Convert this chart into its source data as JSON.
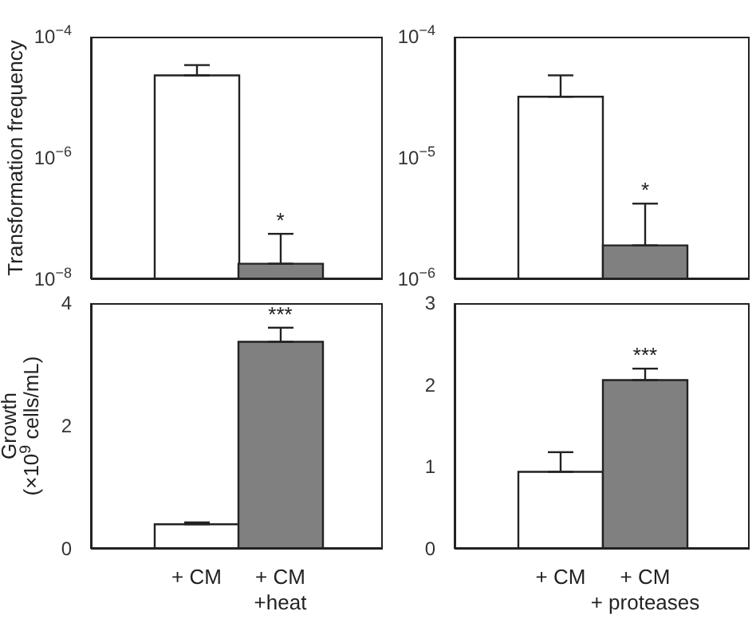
{
  "chart_data": [
    {
      "type": "bar",
      "ylabel": "Transformation frequency",
      "categories": [
        null,
        null
      ],
      "values": [
        2.3e-05,
        1.8e-08
      ],
      "colors": [
        "#ffffff",
        "#808080"
      ],
      "errors": [
        [
          2.3e-05,
          3.4e-05
        ],
        [
          1.8e-08,
          5.6e-08
        ]
      ],
      "log": "y",
      "ylim": [
        1e-08,
        0.0001
      ],
      "yticks": [
        {
          "value": 1e-08,
          "label": "10$^{−8}$"
        },
        {
          "value": 1e-06,
          "label": "10$^{−6}$"
        },
        {
          "value": 0.0001,
          "label": "10$^{−4}$"
        }
      ],
      "tick_labels": "y",
      "annotations": [
        "*"
      ]
    },
    {
      "type": "bar",
      "categories": [
        null,
        null
      ],
      "values": [
        3.2e-05,
        1.9e-06
      ],
      "colors": [
        "#ffffff",
        "#808080"
      ],
      "errors": [
        [
          3.2e-05,
          4.8e-05
        ],
        [
          1.9e-06,
          4.2e-06
        ]
      ],
      "log": "y",
      "ylim": [
        1e-06,
        0.0001
      ],
      "yticks": [
        {
          "value": 1e-06,
          "label": "10$^{−6}$"
        },
        {
          "value": 1e-05,
          "label": "10$^{−5}$"
        },
        {
          "value": 0.0001,
          "label": "10$^{−4}$"
        }
      ],
      "tick_labels": "y",
      "annotations": [
        "*"
      ]
    },
    {
      "type": "bar",
      "ylabel": "Growth\n(×10$^{9}$ cells/mL)",
      "categories": [
        "+ CM",
        "+ CM\n+heat"
      ],
      "values": [
        0.4,
        3.37
      ],
      "colors": [
        "#ffffff",
        "#808080"
      ],
      "errors": [
        [
          0.4,
          0.43
        ],
        [
          3.37,
          3.6
        ]
      ],
      "ylim": [
        0,
        4
      ],
      "yticks": [
        0,
        2,
        4
      ],
      "annotations": [
        "***"
      ]
    },
    {
      "type": "bar",
      "categories": [
        "+ CM",
        "+ CM\n+ proteases"
      ],
      "values": [
        0.94,
        2.06
      ],
      "colors": [
        "#ffffff",
        "#808080"
      ],
      "errors": [
        [
          0.94,
          1.18
        ],
        [
          2.06,
          2.2
        ]
      ],
      "ylim": [
        0,
        3
      ],
      "yticks": [
        0,
        1,
        2,
        3
      ],
      "annotations": [
        "***"
      ]
    }
  ]
}
